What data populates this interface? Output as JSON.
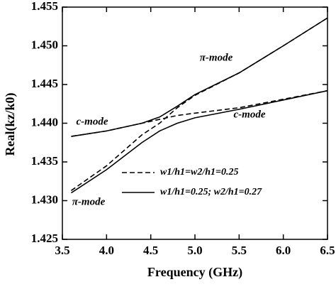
{
  "chart_data": {
    "type": "line",
    "xlabel": "Frequency (GHz)",
    "ylabel": "Real(kz/k0)",
    "x": [
      3.6,
      4.0,
      4.4,
      4.6,
      4.8,
      5.0,
      5.5,
      6.0,
      6.5
    ],
    "series": [
      {
        "name": "w1/h1=w2/h1=0.25",
        "color": "#000",
        "dash": true,
        "branches": [
          {
            "values": [
              1.4383,
              1.439,
              1.44,
              1.4405,
              1.441,
              1.4413,
              1.442,
              1.4431,
              1.4442
            ]
          },
          {
            "values": [
              1.4313,
              1.4345,
              1.4385,
              1.44,
              1.442,
              1.4436,
              1.4465,
              1.45,
              1.4536
            ]
          }
        ]
      },
      {
        "name": "w1/h1=0.25; w2/h1=0.27",
        "color": "#000",
        "dash": false,
        "branches": [
          {
            "values": [
              1.4383,
              1.439,
              1.44,
              1.4408,
              1.4422,
              1.4437,
              1.4465,
              1.45,
              1.4536
            ]
          },
          {
            "values": [
              1.431,
              1.434,
              1.4375,
              1.439,
              1.44,
              1.4407,
              1.4418,
              1.443,
              1.4442
            ]
          }
        ]
      }
    ],
    "annotations": [
      "π-mode",
      "c-mode",
      "c-mode",
      "π-mode"
    ],
    "xlim": [
      3.5,
      6.5
    ],
    "xticks": [
      3.5,
      {
        "value": 4,
        "label": "4.0"
      },
      4.5,
      {
        "value": 5,
        "label": "5.0"
      },
      5.5,
      {
        "value": 6,
        "label": "6.0"
      },
      6.5
    ],
    "ylim": [
      1.425,
      1.455
    ],
    "yticks": [
      1.425,
      {
        "value": 1.43,
        "label": "1.430"
      },
      1.435,
      {
        "value": 1.44,
        "label": "1.440"
      },
      1.445,
      {
        "value": 1.45,
        "label": "1.450"
      },
      1.455
    ],
    "grid": false
  }
}
